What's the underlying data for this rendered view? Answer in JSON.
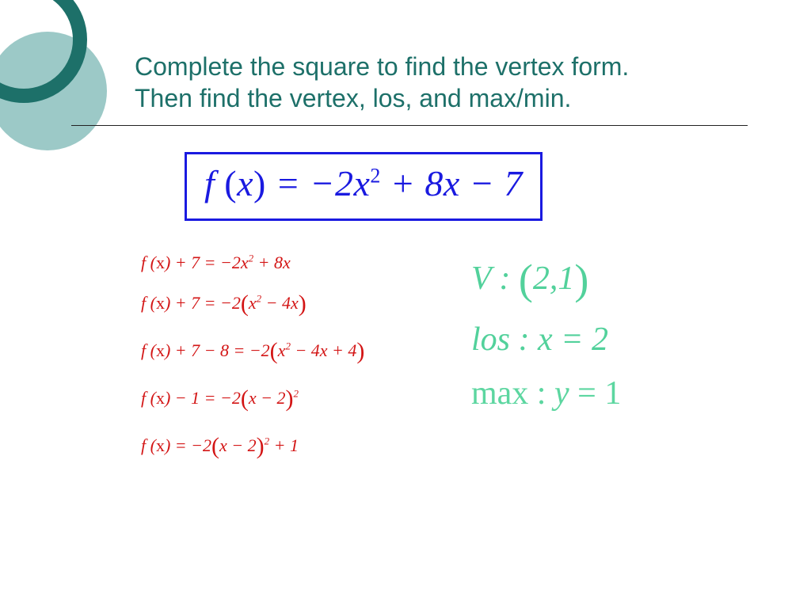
{
  "colors": {
    "title": "#1d7069",
    "ring": "#1d7069",
    "disc": "#9cc9c7",
    "formula_box_border": "#1a1ae0",
    "formula_text": "#1a1ae0",
    "steps_text": "#d31515",
    "answer_v": "#52d19b",
    "answer_los": "#52d19b",
    "answer_max": "#5cd6a0",
    "background": "#ffffff"
  },
  "title": {
    "line1": "Complete the square to find the vertex form.",
    "line2": "Then find the vertex, los, and max/min."
  },
  "main_equation_html": "<span class='it'>f</span> <span class='up'>(</span><span class='it'>x</span><span class='up'>)</span> = −2<span class='it'>x</span><span class='sq'>2</span> + 8<span class='it'>x</span> − 7",
  "steps": [
    "f (<span class='up'>x</span>) + 7 = −2x<span class='sq'>2</span> + 8x",
    "f (<span class='up'>x</span>) + 7 = −2<span class='bigp'>(</span>x<span class='sq'>2</span> − 4x<span class='bigp'>)</span>",
    "f (<span class='up'>x</span>) + 7 − 8 = −2<span class='bigp'>(</span>x<span class='sq'>2</span> − 4x + 4<span class='bigp'>)</span>",
    "f (<span class='up'>x</span>) − 1 = −2<span class='bigp'>(</span>x − 2<span class='bigp'>)</span><span class='sq'>2</span>",
    "f (<span class='up'>x</span>) = −2<span class='bigp'>(</span>x − 2<span class='bigp'>)</span><span class='sq'>2</span> + 1"
  ],
  "answers": {
    "vertex_html": "V : <span class='bigp2'>(</span>2,1<span class='bigp2'>)</span>",
    "los_html": "los : x = 2",
    "max_html": "max : <span class='it'>y</span> = 1"
  }
}
